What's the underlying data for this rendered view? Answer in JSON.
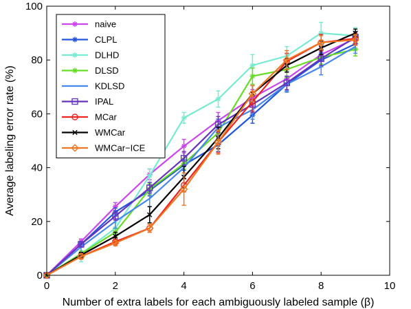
{
  "chart_data": {
    "type": "line",
    "title": "",
    "xlabel": "Number of extra labels for each ambiguously labeled sample (β)",
    "ylabel": "Average labeling error rate (%)",
    "xlim": [
      0,
      10
    ],
    "ylim": [
      0,
      100
    ],
    "xticks": [
      "0",
      "2",
      "4",
      "6",
      "8",
      "10"
    ],
    "yticks": [
      "0",
      "20",
      "40",
      "60",
      "80",
      "100"
    ],
    "x": [
      0,
      1,
      2,
      3,
      4,
      5,
      6,
      7,
      8,
      9
    ],
    "grid": false,
    "legend_position": "top-left",
    "series": [
      {
        "name": "naive",
        "color": "#cc44ee",
        "marker": "asterisk",
        "values": [
          0,
          12.5,
          25.5,
          37.5,
          48,
          57.5,
          66,
          73,
          82,
          88
        ],
        "errors": [
          0,
          1,
          1.5,
          2,
          2.5,
          3,
          3,
          2.5,
          2.5,
          2
        ]
      },
      {
        "name": "CLPL",
        "color": "#2255dd",
        "marker": "asterisk",
        "values": [
          0,
          11.5,
          23.5,
          31.5,
          41,
          48.5,
          59.5,
          71,
          80,
          86
        ],
        "errors": [
          0,
          1,
          1.5,
          2,
          2,
          2.5,
          3,
          2.5,
          2.5,
          2
        ]
      },
      {
        "name": "DLHD",
        "color": "#77ead2",
        "marker": "asterisk",
        "values": [
          0,
          8,
          17.5,
          37,
          58.5,
          65.5,
          78,
          81.5,
          90,
          89
        ],
        "errors": [
          0,
          3,
          2,
          2.5,
          2,
          3,
          4,
          3.5,
          4,
          3
        ]
      },
      {
        "name": "DLSD",
        "color": "#66dd22",
        "marker": "asterisk",
        "values": [
          0,
          8,
          16,
          32,
          41.5,
          53,
          74,
          76.5,
          81,
          84
        ],
        "errors": [
          0,
          1,
          1.5,
          2,
          2,
          3,
          3,
          3,
          2.5,
          2.5
        ]
      },
      {
        "name": "KDLSD",
        "color": "#4488ee",
        "marker": "none",
        "values": [
          0,
          10.5,
          20,
          28.5,
          40,
          55,
          61.5,
          71,
          77.5,
          85
        ],
        "errors": [
          0,
          2,
          2.5,
          3,
          3,
          3,
          3.5,
          3,
          3,
          2.5
        ]
      },
      {
        "name": "IPAL",
        "color": "#6633bb",
        "marker": "square",
        "values": [
          0,
          11.5,
          22,
          32.5,
          43.5,
          56,
          63.5,
          71.5,
          80.5,
          88.5
        ],
        "errors": [
          0,
          1,
          1.5,
          2,
          2.5,
          3,
          3,
          2.5,
          2.5,
          2
        ]
      },
      {
        "name": "MCar",
        "color": "#ee2222",
        "marker": "circle",
        "values": [
          0,
          7,
          12.5,
          17.5,
          33.5,
          49.5,
          64.5,
          79.5,
          86.5,
          88
        ],
        "errors": [
          0,
          1,
          1.5,
          1.5,
          2.5,
          4,
          3.5,
          3,
          3,
          2
        ]
      },
      {
        "name": "WMCar",
        "color": "#000000",
        "marker": "x",
        "values": [
          0,
          7.5,
          14.5,
          22.5,
          36.5,
          51,
          67.5,
          78,
          84.5,
          90
        ],
        "errors": [
          0,
          1,
          1.5,
          3,
          4,
          4,
          3,
          2.5,
          2.5,
          1.5
        ]
      },
      {
        "name": "WMCar−ICE",
        "color": "#f07722",
        "marker": "diamond",
        "values": [
          0,
          7,
          12,
          17.5,
          32,
          49.5,
          67.5,
          80,
          86.5,
          87.5
        ],
        "errors": [
          0,
          1,
          1,
          1.5,
          6,
          4.5,
          3,
          3.5,
          2.5,
          2
        ]
      }
    ]
  }
}
